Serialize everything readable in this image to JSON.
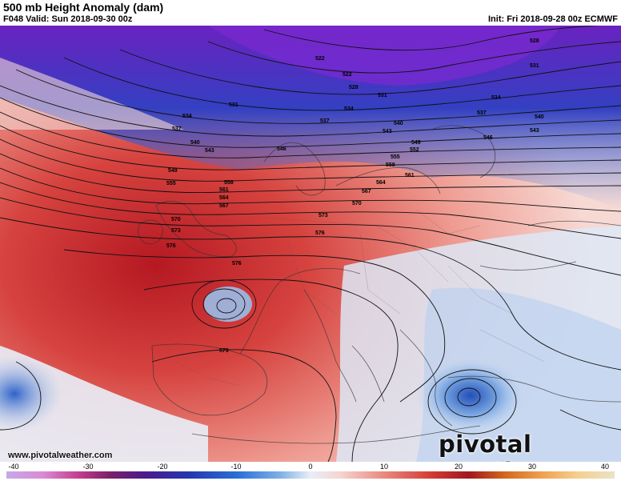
{
  "header": {
    "title": "500 mb Height Anomaly (dam)",
    "valid": "F048 Valid: Sun 2018-09-30 00z",
    "init": "Init: Fri 2018-09-28 00z ECMWF"
  },
  "contour_labels": [
    "522",
    "528",
    "531",
    "534",
    "537",
    "540",
    "543",
    "546",
    "549",
    "552",
    "555",
    "558",
    "561",
    "564",
    "567",
    "570",
    "573",
    "576",
    "579"
  ],
  "footer": {
    "url": "www.pivotalweather.com",
    "brand": "pivotal weather"
  },
  "colorbar": {
    "ticks": [
      "-40",
      "-30",
      "-20",
      "-10",
      "0",
      "10",
      "20",
      "30",
      "40"
    ],
    "colors": [
      "#c8a8e8",
      "#c23c8c",
      "#4a1a8c",
      "#2a6fd6",
      "#e8eef8",
      "#e98a80",
      "#a01820",
      "#f0a050",
      "#eae2c8"
    ]
  }
}
